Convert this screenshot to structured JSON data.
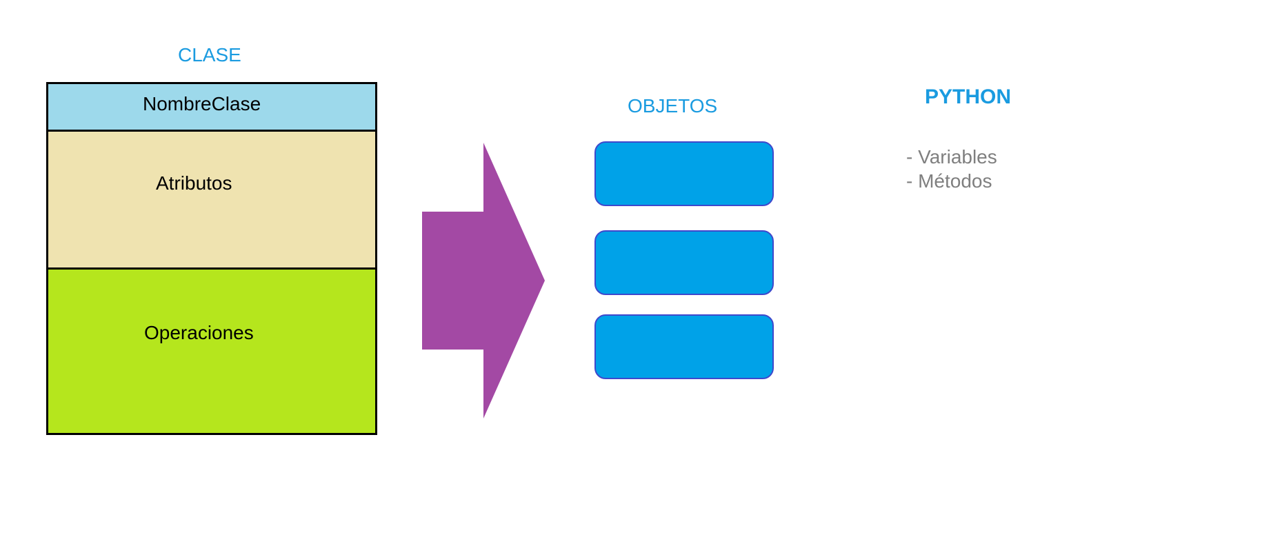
{
  "clase": {
    "title": "CLASE",
    "name": "NombreClase",
    "attributes": "Atributos",
    "operations": "Operaciones",
    "colors": {
      "name_bg": "#9dd9eb",
      "attributes_bg": "#efe3b0",
      "operations_bg": "#b5e61d"
    }
  },
  "arrow": {
    "color": "#a349a4"
  },
  "objetos": {
    "title": "OBJETOS",
    "count": 3,
    "color": "#00a2e8",
    "border_color": "#3f48cc"
  },
  "python": {
    "title": "PYTHON",
    "items": [
      "- Variables",
      "- Métodos"
    ]
  },
  "accent_color": "#1a9be0",
  "muted_text_color": "#7f7f7f"
}
